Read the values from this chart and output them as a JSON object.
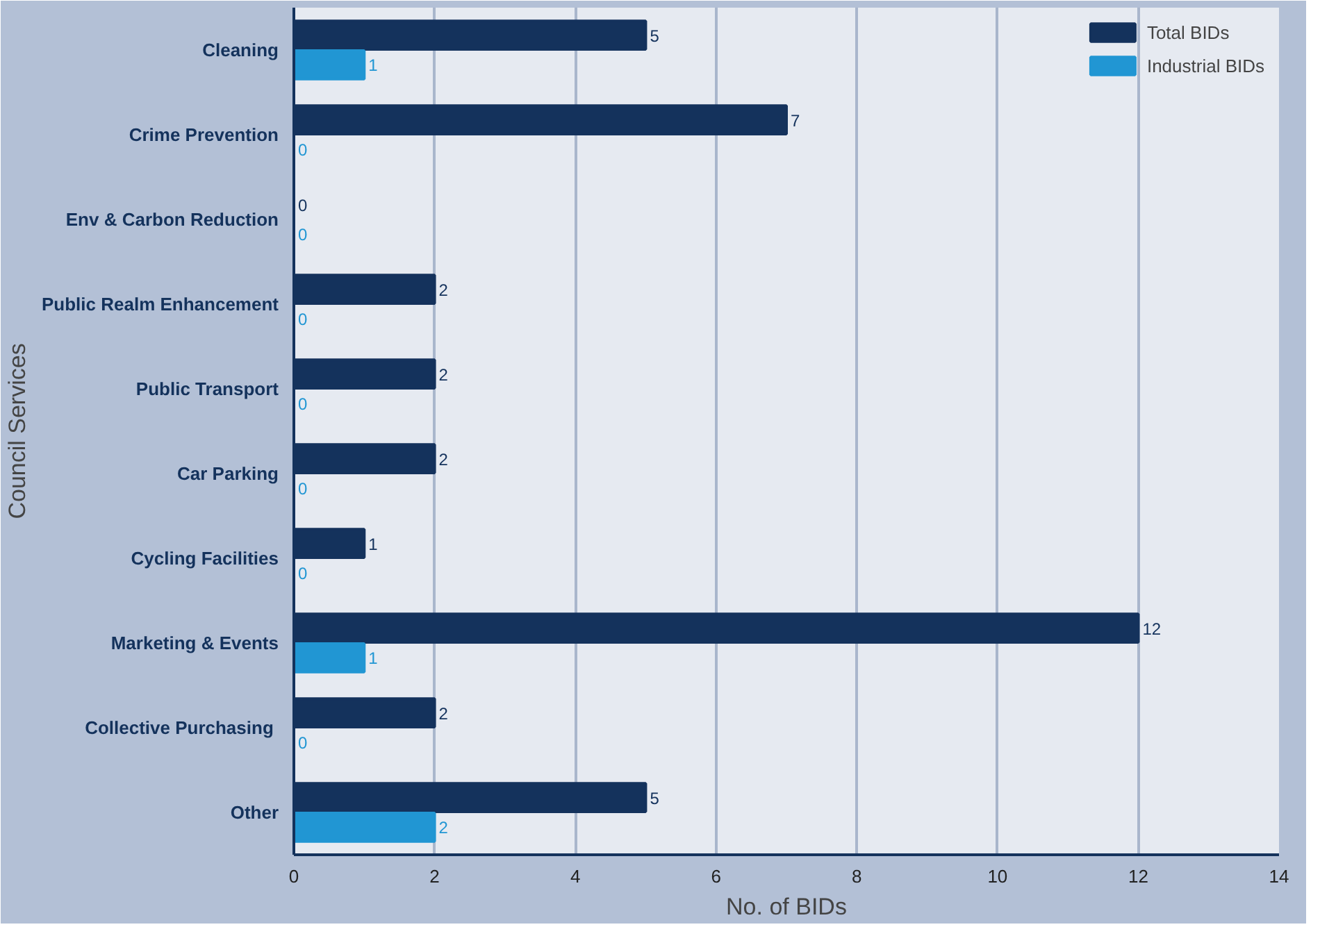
{
  "chart_data": {
    "type": "bar",
    "orientation": "horizontal",
    "xlabel": "No. of BIDs",
    "ylabel": "Council Services",
    "categories": [
      "Cleaning",
      "Crime Prevention",
      "Env & Carbon Reduction",
      "Public Realm Enhancement",
      "Public Transport",
      "Car Parking",
      "Cycling Facilities",
      "Marketing & Events",
      "Collective  Purchasing",
      "Other"
    ],
    "series": [
      {
        "name": "Total BIDs",
        "color": "#14325c",
        "values": [
          5,
          7,
          0,
          2,
          2,
          2,
          1,
          12,
          2,
          5
        ]
      },
      {
        "name": "Industrial BIDs",
        "color": "#2196d3",
        "values": [
          1,
          0,
          0,
          0,
          0,
          0,
          0,
          1,
          0,
          2
        ]
      }
    ],
    "xlim": [
      0,
      14
    ],
    "xticks": [
      0,
      2,
      4,
      6,
      8,
      10,
      12,
      14
    ],
    "grid": "x",
    "legend": "top right",
    "data_labels": true
  }
}
